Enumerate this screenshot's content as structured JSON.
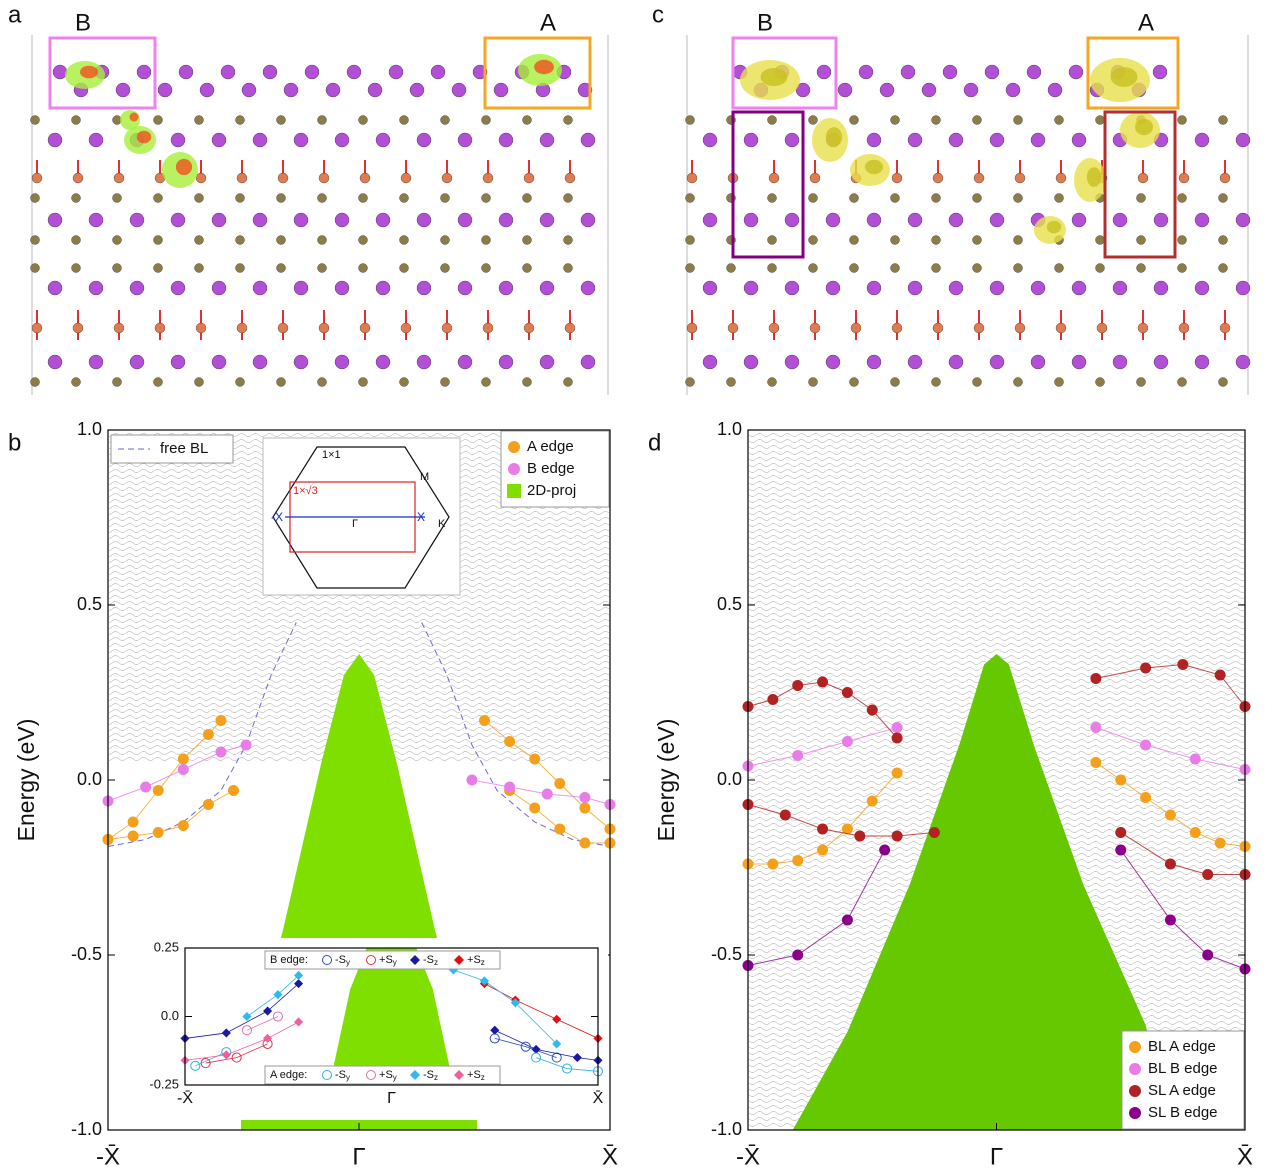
{
  "structures": [
    {
      "panel_label": "a",
      "box_left": "B",
      "box_right": "A"
    },
    {
      "panel_label": "c",
      "box_left": "B",
      "box_right": "A"
    }
  ],
  "chart_data": [
    {
      "type": "scatter",
      "panel_label": "b",
      "y_label": "Energy (eV)",
      "xlim": [
        -1,
        1
      ],
      "ylim": [
        -1,
        1
      ],
      "xticks": [
        {
          "value": -1,
          "label": "-X̄"
        },
        {
          "value": 0,
          "label": "Γ"
        },
        {
          "value": 1,
          "label": "X̄"
        }
      ],
      "yticks": [
        {
          "value": -1,
          "label": "-1.0"
        },
        {
          "value": -0.5,
          "label": "-0.5"
        },
        {
          "value": 0,
          "label": "0.0"
        },
        {
          "value": 0.5,
          "label": "0.5"
        },
        {
          "value": 1,
          "label": "1.0"
        }
      ],
      "legend": "upper right",
      "series": [
        {
          "name": "A edge",
          "style": "dots",
          "color": "#f5a01a",
          "x": [
            -1,
            -0.9,
            -0.8,
            -0.7,
            -0.6,
            -0.55,
            null,
            -1,
            -0.9,
            -0.8,
            -0.7,
            -0.6,
            -0.5,
            null,
            0.5,
            0.6,
            0.7,
            0.8,
            0.9,
            1,
            null,
            0.6,
            0.7,
            0.8,
            0.9,
            1
          ],
          "values": [
            -0.17,
            -0.12,
            -0.03,
            0.06,
            0.13,
            0.17,
            null,
            -0.17,
            -0.16,
            -0.15,
            -0.13,
            -0.07,
            -0.03,
            null,
            0.17,
            0.11,
            0.06,
            -0.01,
            -0.08,
            -0.14,
            null,
            -0.03,
            -0.08,
            -0.14,
            -0.18,
            -0.18
          ]
        },
        {
          "name": "B edge",
          "style": "dots",
          "color": "#e87de8",
          "x": [
            -1,
            -0.85,
            -0.7,
            -0.55,
            -0.45,
            null,
            0.45,
            0.6,
            0.75,
            0.9,
            1
          ],
          "values": [
            -0.06,
            -0.02,
            0.03,
            0.08,
            0.1,
            null,
            0.0,
            -0.02,
            -0.04,
            -0.05,
            -0.07
          ]
        },
        {
          "name": "2D-proj",
          "style": "area",
          "color": "#7fe000",
          "x": [
            -0.47,
            -0.3,
            -0.15,
            -0.06,
            0,
            0.06,
            0.15,
            0.3,
            0.47
          ],
          "values": [
            -0.9,
            -0.42,
            0.05,
            0.3,
            0.36,
            0.3,
            0.05,
            -0.42,
            -0.9
          ]
        },
        {
          "name": "free BL",
          "style": "dashed",
          "color": "#6a6ad8",
          "legend": "upper left",
          "x": [
            -1,
            -0.85,
            -0.7,
            -0.55,
            -0.45,
            -0.35,
            -0.25,
            null,
            0.25,
            0.35,
            0.45,
            0.55,
            0.7,
            0.85,
            1
          ],
          "values": [
            -0.19,
            -0.17,
            -0.12,
            -0.03,
            0.1,
            0.3,
            0.45,
            null,
            0.45,
            0.3,
            0.1,
            -0.03,
            -0.12,
            -0.17,
            -0.19
          ]
        }
      ],
      "inset_diagram": {
        "cell_1x1": "1×1",
        "cell_1xr3": "1×√3",
        "M": "M",
        "K": "K",
        "Gamma": "Γ",
        "X": "X",
        "minus_X": "-X"
      }
    },
    {
      "type": "scatter",
      "xlim": [
        -1,
        1
      ],
      "ylim": [
        -0.25,
        0.25
      ],
      "xticks": [
        {
          "value": -1,
          "label": "-X̄"
        },
        {
          "value": 0,
          "label": "Γ"
        },
        {
          "value": 1,
          "label": "X̄"
        }
      ],
      "yticks": [
        {
          "value": -0.25,
          "label": "-0.25"
        },
        {
          "value": 0,
          "label": "0.0"
        },
        0.25
      ],
      "symbol": "S",
      "series": [
        {
          "style": "area",
          "color": "#7fe000",
          "x": [
            -0.3,
            -0.2,
            -0.12,
            0,
            0.12,
            0.2,
            0.3
          ],
          "values": [
            -0.25,
            0.1,
            0.25,
            0.25,
            0.25,
            0.1,
            -0.25
          ]
        }
      ],
      "groups": [
        {
          "name": "B edge:",
          "series": [
            {
              "sign": "-",
              "sub": "y",
              "marker": "circle-open",
              "color": "#3050c0",
              "x": [
                0.5,
                0.65,
                0.8
              ],
              "values": [
                -0.08,
                -0.11,
                -0.15
              ]
            },
            {
              "sign": "+",
              "sub": "y",
              "marker": "circle-open",
              "color": "#e03040",
              "x": [
                -0.9,
                -0.75,
                -0.6
              ],
              "values": [
                -0.17,
                -0.15,
                -0.1
              ]
            },
            {
              "sign": "-",
              "sub": "z",
              "marker": "diamond",
              "color": "#1a1aa0",
              "x": [
                -1,
                -0.8,
                -0.6,
                -0.45,
                null,
                0.5,
                0.7,
                0.9,
                1
              ],
              "values": [
                -0.08,
                -0.06,
                0.02,
                0.12,
                null,
                -0.05,
                -0.12,
                -0.15,
                -0.16
              ]
            },
            {
              "sign": "+",
              "sub": "z",
              "marker": "diamond",
              "color": "#e01010",
              "x": [
                0.45,
                0.6,
                0.8,
                1
              ],
              "values": [
                0.12,
                0.06,
                -0.01,
                -0.08
              ]
            }
          ]
        },
        {
          "name": "A edge:",
          "series": [
            {
              "sign": "-",
              "sub": "y",
              "marker": "circle-open",
              "color": "#30b0e0",
              "x": [
                -0.95,
                -0.8,
                null,
                0.7,
                0.85,
                1
              ],
              "values": [
                -0.18,
                -0.13,
                null,
                -0.15,
                -0.19,
                -0.2
              ]
            },
            {
              "sign": "+",
              "sub": "y",
              "marker": "circle-open",
              "color": "#e070b0",
              "x": [
                -0.7,
                -0.55
              ],
              "values": [
                -0.05,
                0.0
              ]
            },
            {
              "sign": "-",
              "sub": "z",
              "marker": "diamond",
              "color": "#30b8f0",
              "x": [
                -0.7,
                -0.55,
                -0.45,
                null,
                0.3,
                0.45,
                0.6,
                0.8
              ],
              "values": [
                0.0,
                0.08,
                0.15,
                null,
                0.17,
                0.13,
                0.05,
                -0.1
              ]
            },
            {
              "sign": "+",
              "sub": "z",
              "marker": "diamond",
              "color": "#f060a0",
              "x": [
                -1,
                -0.8,
                -0.6,
                -0.45
              ],
              "values": [
                -0.16,
                -0.14,
                -0.08,
                -0.02
              ]
            }
          ]
        }
      ]
    },
    {
      "type": "scatter",
      "panel_label": "d",
      "y_label": "Energy (eV)",
      "xlim": [
        -1,
        1
      ],
      "ylim": [
        -1,
        1
      ],
      "xticks": [
        {
          "value": -1,
          "label": "-X̄"
        },
        {
          "value": 0,
          "label": "Γ"
        },
        {
          "value": 1,
          "label": "X̄"
        }
      ],
      "yticks": [
        {
          "value": -1,
          "label": "-1.0"
        },
        {
          "value": -0.5,
          "label": "-0.5"
        },
        {
          "value": 0,
          "label": "0.0"
        },
        {
          "value": 0.5,
          "label": "0.5"
        },
        {
          "value": 1,
          "label": "1.0"
        }
      ],
      "legend": "lower right",
      "series": [
        {
          "style": "area",
          "color": "#66c800",
          "x": [
            -0.82,
            -0.6,
            -0.35,
            -0.15,
            -0.05,
            0,
            0.05,
            0.15,
            0.35,
            0.6,
            0.7
          ],
          "values": [
            -1,
            -0.72,
            -0.3,
            0.1,
            0.33,
            0.36,
            0.33,
            0.1,
            -0.3,
            -0.7,
            -1
          ]
        },
        {
          "name": "BL A edge",
          "style": "dots",
          "color": "#f5a01a",
          "x": [
            -1,
            -0.9,
            -0.8,
            -0.7,
            -0.6,
            -0.5,
            -0.4,
            null,
            0.4,
            0.5,
            0.6,
            0.7,
            0.8,
            0.9,
            1
          ],
          "values": [
            -0.24,
            -0.24,
            -0.23,
            -0.2,
            -0.14,
            -0.06,
            0.02,
            null,
            0.05,
            0.0,
            -0.05,
            -0.1,
            -0.15,
            -0.18,
            -0.19
          ]
        },
        {
          "name": "BL B edge",
          "style": "dots",
          "color": "#e87de8",
          "x": [
            -1,
            -0.8,
            -0.6,
            -0.4,
            null,
            0.4,
            0.6,
            0.8,
            1
          ],
          "values": [
            0.04,
            0.07,
            0.11,
            0.15,
            null,
            0.15,
            0.1,
            0.06,
            0.03
          ]
        },
        {
          "name": "SL A edge",
          "style": "dots",
          "color": "#b22222",
          "x": [
            -1,
            -0.9,
            -0.8,
            -0.7,
            -0.6,
            -0.5,
            -0.4,
            null,
            -1,
            -0.85,
            -0.7,
            -0.55,
            -0.4,
            -0.25,
            null,
            0.4,
            0.6,
            0.75,
            0.9,
            1,
            null,
            0.5,
            0.7,
            0.85,
            1
          ],
          "values": [
            0.21,
            0.23,
            0.27,
            0.28,
            0.25,
            0.2,
            0.12,
            null,
            -0.07,
            -0.1,
            -0.14,
            -0.16,
            -0.16,
            -0.15,
            null,
            0.29,
            0.32,
            0.33,
            0.3,
            0.21,
            null,
            -0.15,
            -0.24,
            -0.27,
            -0.27
          ]
        },
        {
          "name": "SL B edge",
          "style": "dots",
          "color": "#8b008b",
          "x": [
            -1,
            -0.8,
            -0.6,
            -0.45,
            null,
            0.5,
            0.7,
            0.85,
            1
          ],
          "values": [
            -0.53,
            -0.5,
            -0.4,
            -0.2,
            null,
            -0.2,
            -0.4,
            -0.5,
            -0.54
          ]
        }
      ]
    }
  ]
}
